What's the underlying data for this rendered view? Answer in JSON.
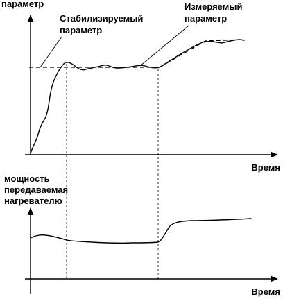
{
  "top_chart": {
    "y_axis_label": "параметр",
    "x_axis_label": "Время",
    "callout_stabilized": [
      "Стабилизируемый",
      "параметр"
    ],
    "callout_measured": [
      "Измеряемый",
      "параметр"
    ]
  },
  "bottom_chart": {
    "y_axis_label": [
      "мощность",
      "передаваемая",
      "нагревателю"
    ],
    "x_axis_label": "Время"
  }
}
